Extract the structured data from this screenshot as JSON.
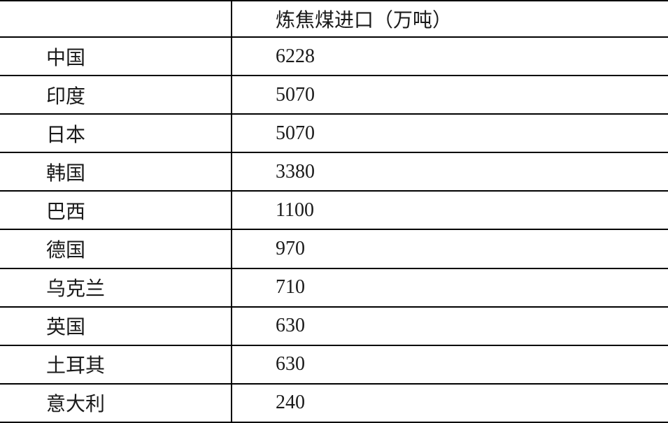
{
  "table": {
    "header": {
      "country_label": "",
      "value_label": "炼焦煤进口（万吨）"
    },
    "rows": [
      {
        "country": "中国",
        "value": "6228"
      },
      {
        "country": "印度",
        "value": "5070"
      },
      {
        "country": "日本",
        "value": "5070"
      },
      {
        "country": "韩国",
        "value": "3380"
      },
      {
        "country": "巴西",
        "value": "1100"
      },
      {
        "country": "德国",
        "value": "970"
      },
      {
        "country": "乌克兰",
        "value": "710"
      },
      {
        "country": "英国",
        "value": "630"
      },
      {
        "country": "土耳其",
        "value": "630"
      },
      {
        "country": "意大利",
        "value": "240"
      }
    ]
  },
  "chart_data": {
    "type": "table",
    "title": "炼焦煤进口（万吨）",
    "columns": [
      "",
      "炼焦煤进口（万吨）"
    ],
    "categories": [
      "中国",
      "印度",
      "日本",
      "韩国",
      "巴西",
      "德国",
      "乌克兰",
      "英国",
      "土耳其",
      "意大利"
    ],
    "values": [
      6228,
      5070,
      5070,
      3380,
      1100,
      970,
      710,
      630,
      630,
      240
    ]
  },
  "colors": {
    "background": "#ffffff",
    "border": "#000000",
    "text": "#1a1a1a"
  }
}
